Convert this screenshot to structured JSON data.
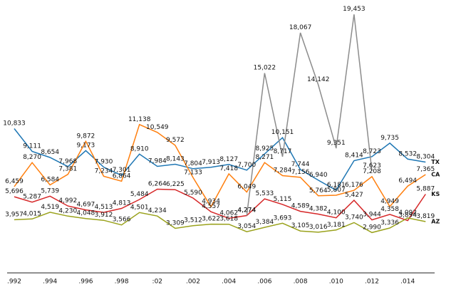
{
  "chart_data": {
    "type": "line",
    "categories": [
      ".992",
      null,
      ".994",
      null,
      ".996",
      null,
      ".998",
      null,
      ":02",
      null,
      ".002",
      null,
      ".004",
      null,
      ".006",
      null,
      ".008",
      null,
      ".010",
      null,
      ".012",
      null,
      ".014",
      null
    ],
    "ylim": [
      0,
      20000
    ],
    "series": [
      {
        "name": "TX",
        "color": "#1f77b4",
        "values": [
          10833,
          9111,
          8654,
          7968,
          9173,
          7930,
          7301,
          8910,
          7984,
          8143,
          7804,
          7913,
          8127,
          7700,
          8925,
          10151,
          7744,
          6940,
          6181,
          8414,
          8723,
          9735,
          8532,
          8304
        ],
        "value_labels": [
          "10,833",
          "9,111",
          "8,654",
          "7,968",
          "9,173",
          "7,930",
          "7,301",
          "8,910",
          "7,984",
          "8,143",
          "7,804",
          "7,913",
          "8,127",
          "7,700",
          "8,925",
          "10,151",
          "7,744",
          "6,940",
          "6,181",
          "8,414",
          "8,723",
          "9,735",
          "8,532",
          "8,304"
        ]
      },
      {
        "name": "CA",
        "color": "#ff7f0e",
        "values": [
          6459,
          8270,
          6584,
          7381,
          9872,
          7234,
          6864,
          11138,
          10549,
          9572,
          7133,
          4934,
          7418,
          6049,
          8271,
          7284,
          7156,
          5764,
          5807,
          6176,
          7208,
          4949,
          6494,
          7365
        ],
        "value_labels": [
          "6,459",
          "8,270",
          "6,584",
          "7,381",
          "9,872",
          "7,234",
          "6,864",
          "11,138",
          "10,549",
          "9,572",
          "7,133",
          "4,934",
          "7,418",
          "6,049",
          "8,271",
          "7,284",
          "7,156",
          "5,764",
          "5,807",
          "6,176",
          "7,208",
          "4,949",
          "6,494",
          "7,365"
        ]
      },
      {
        "name": "KS",
        "color": "#d62728",
        "values": [
          5696,
          5287,
          5739,
          4992,
          4697,
          4513,
          4813,
          5484,
          6264,
          6225,
          5590,
          4557,
          4062,
          4274,
          5533,
          5115,
          4589,
          4382,
          4100,
          5427,
          3944,
          4358,
          3894,
          5887
        ],
        "value_labels": [
          "5,696",
          "5,287",
          "5,739",
          "4,992",
          "4,697",
          "4,513",
          "4,813",
          "5,484",
          "6,264",
          "6,225",
          "5,590",
          "4,557",
          "4,062",
          "4,274",
          "5,533",
          "5,115",
          "4,589",
          "4,382",
          "4,100",
          "5,427",
          "3,944",
          "4,358",
          "3,894",
          "5,887"
        ]
      },
      {
        "name": "AZ",
        "color": "#9aa21c",
        "values": [
          3957,
          4015,
          4519,
          4230,
          4048,
          3912,
          3566,
          4501,
          4234,
          3309,
          3512,
          3622,
          3618,
          3054,
          3384,
          3693,
          3105,
          3016,
          3181,
          3740,
          2990,
          3336,
          4092,
          3819
        ],
        "value_labels": [
          "3,957",
          "4,015",
          "4,519",
          "4,230",
          "4,048",
          "3,912",
          "3,566",
          "4,501",
          "4,234",
          "3,309",
          "3,512",
          "3,622",
          "3,618",
          "3,054",
          "3,384",
          "3,693",
          "3,105",
          "3,016",
          "3,181",
          "3,740",
          "2,990",
          "3,336",
          "4,092",
          "3,819"
        ]
      },
      {
        "color": "#8c8c8c",
        "values": [
          null,
          null,
          null,
          null,
          null,
          null,
          null,
          null,
          null,
          null,
          null,
          null,
          null,
          4274,
          15022,
          8717,
          18067,
          14142,
          9351,
          19453,
          7623,
          null,
          null,
          null
        ],
        "value_labels": [
          null,
          null,
          null,
          null,
          null,
          null,
          null,
          null,
          null,
          null,
          null,
          null,
          null,
          "4,274",
          "15,022",
          "8,717",
          "18,067",
          "14,142",
          "9,351",
          "19,453",
          "7,623",
          null,
          null,
          null
        ]
      }
    ]
  }
}
